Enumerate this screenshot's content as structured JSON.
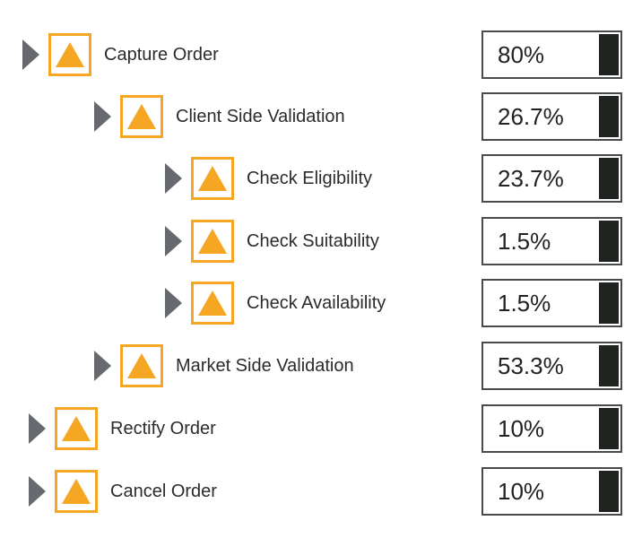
{
  "colors": {
    "caret": "#666a6e",
    "accent": "#f5a623",
    "value_border": "#4a4a4a",
    "value_bar": "#1f2421",
    "text": "#2b2b2b"
  },
  "icons": {
    "expander": "caret-right-icon",
    "node": "warning-triangle-icon"
  },
  "nodes": [
    {
      "label": "Capture Order",
      "value": "80%",
      "level": 0
    },
    {
      "label": "Client Side Validation",
      "value": "26.7%",
      "level": 1
    },
    {
      "label": "Check Eligibility",
      "value": "23.7%",
      "level": 2
    },
    {
      "label": "Check Suitability",
      "value": "1.5%",
      "level": 2
    },
    {
      "label": "Check Availability",
      "value": "1.5%",
      "level": 2
    },
    {
      "label": "Market Side Validation",
      "value": "53.3%",
      "level": 1
    },
    {
      "label": "Rectify Order",
      "value": "10%",
      "level": 0
    },
    {
      "label": "Cancel Order",
      "value": "10%",
      "level": 0
    }
  ]
}
